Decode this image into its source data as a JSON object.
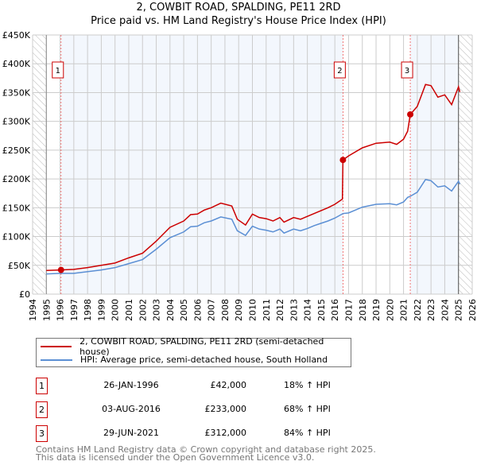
{
  "chart_data": {
    "type": "line",
    "title": "2, COWBIT ROAD, SPALDING, PE11 2RD",
    "subtitle": "Price paid vs. HM Land Registry's House Price Index (HPI)",
    "xlim": [
      1994,
      2026
    ],
    "ylim": [
      0,
      450000
    ],
    "x_ticks": [
      1994,
      1995,
      1996,
      1997,
      1998,
      1999,
      2000,
      2001,
      2002,
      2003,
      2004,
      2005,
      2006,
      2007,
      2008,
      2009,
      2010,
      2011,
      2012,
      2013,
      2014,
      2015,
      2016,
      2017,
      2018,
      2019,
      2020,
      2021,
      2022,
      2023,
      2024,
      2025,
      2026
    ],
    "y_ticks": [
      0,
      50000,
      100000,
      150000,
      200000,
      250000,
      300000,
      350000,
      400000,
      450000
    ],
    "y_tick_labels": [
      "£0",
      "£50K",
      "£100K",
      "£150K",
      "£200K",
      "£250K",
      "£300K",
      "£350K",
      "£400K",
      "£450K"
    ],
    "grid": true,
    "series": [
      {
        "name": "2, COWBIT ROAD, SPALDING, PE11 2RD (semi-detached house)",
        "color": "#cc0000",
        "x": [
          1995,
          1996,
          1997,
          1998,
          1999,
          2000,
          2001,
          2002,
          2003,
          2004,
          2005,
          2005.5,
          2006,
          2006.5,
          2007,
          2007.7,
          2008.5,
          2008.9,
          2009.5,
          2010,
          2010.5,
          2011,
          2011.5,
          2012,
          2012.3,
          2013,
          2013.5,
          2014,
          2014.5,
          2015,
          2015.5,
          2016,
          2016.55,
          2016.59,
          2017,
          2018,
          2019,
          2020,
          2020.5,
          2021,
          2021.3,
          2021.49,
          2022,
          2022.6,
          2023,
          2023.5,
          2024,
          2024.5,
          2025,
          2025.1
        ],
        "y": [
          41000,
          42000,
          43000,
          46000,
          50000,
          54000,
          63000,
          71000,
          92000,
          116000,
          127000,
          138000,
          139000,
          146000,
          150000,
          158000,
          153000,
          130000,
          120000,
          139000,
          133000,
          131000,
          127000,
          133000,
          125000,
          133000,
          130000,
          135000,
          140000,
          145000,
          150000,
          156000,
          165000,
          233000,
          240000,
          254000,
          262000,
          264000,
          260000,
          269000,
          283000,
          312000,
          326000,
          364000,
          362000,
          342000,
          346000,
          329000,
          360000,
          351000
        ]
      },
      {
        "name": "HPI: Average price, semi-detached house, South Holland",
        "color": "#5b8fd4",
        "x": [
          1995,
          1996,
          1997,
          1998,
          1999,
          2000,
          2001,
          2002,
          2003,
          2004,
          2005,
          2005.5,
          2006,
          2006.5,
          2007,
          2007.7,
          2008.5,
          2008.9,
          2009.5,
          2010,
          2010.5,
          2011,
          2011.5,
          2012,
          2012.3,
          2013,
          2013.5,
          2014,
          2014.5,
          2015,
          2015.5,
          2016,
          2016.6,
          2017,
          2018,
          2019,
          2020,
          2020.5,
          2021,
          2021.3,
          2021.5,
          2022,
          2022.6,
          2023,
          2023.5,
          2024,
          2024.5,
          2025,
          2025.1
        ],
        "y": [
          35000,
          36000,
          36000,
          39000,
          42000,
          46000,
          53000,
          60000,
          78000,
          98000,
          108000,
          117000,
          118000,
          124000,
          127000,
          134000,
          130000,
          110000,
          102000,
          118000,
          113000,
          111000,
          108000,
          113000,
          106000,
          113000,
          110000,
          114000,
          119000,
          123000,
          127000,
          132000,
          140000,
          141000,
          151000,
          156000,
          157000,
          155000,
          160000,
          168000,
          170000,
          177000,
          199000,
          197000,
          186000,
          188000,
          179000,
          196000,
          191000
        ]
      }
    ],
    "sales": [
      {
        "label": "1",
        "x": 1996.07,
        "price": 42000,
        "date": "26-JAN-1996",
        "price_text": "£42,000",
        "hpi": "18% ↑ HPI"
      },
      {
        "label": "2",
        "x": 2016.59,
        "price": 233000,
        "date": "03-AUG-2016",
        "price_text": "£233,000",
        "hpi": "68% ↑ HPI"
      },
      {
        "label": "3",
        "x": 2021.49,
        "price": 312000,
        "date": "29-JUN-2021",
        "price_text": "£312,000",
        "hpi": "84% ↑ HPI"
      }
    ],
    "legend": [
      "2, COWBIT ROAD, SPALDING, PE11 2RD (semi-detached house)",
      "HPI: Average price, semi-detached house, South Holland"
    ]
  },
  "footer": [
    "Contains HM Land Registry data © Crown copyright and database right 2025.",
    "This data is licensed under the Open Government Licence v3.0."
  ]
}
